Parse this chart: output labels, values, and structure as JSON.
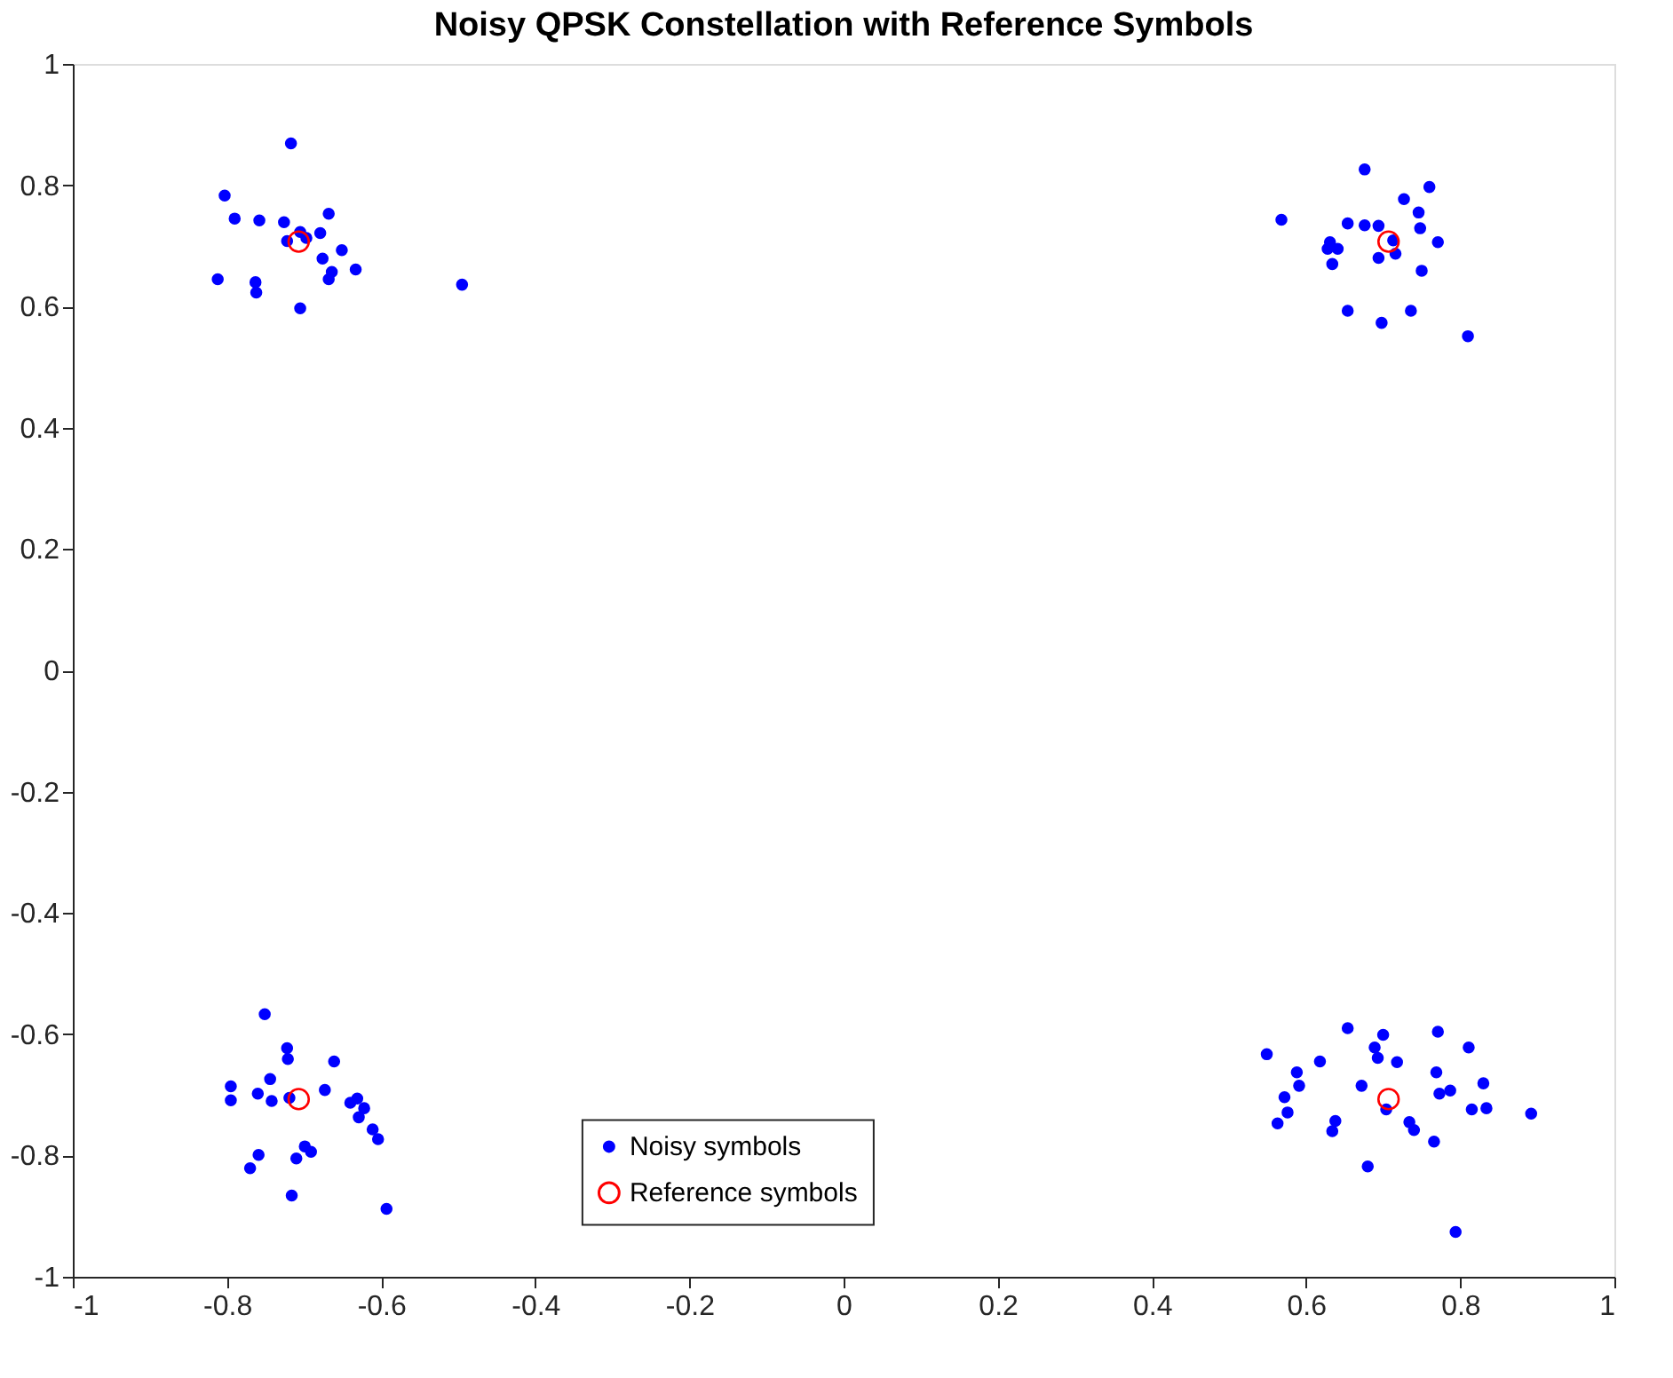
{
  "chart_data": {
    "type": "scatter",
    "title": "Noisy QPSK Constellation with Reference Symbols",
    "series": [
      {
        "name": "Noisy symbols",
        "color": "#0000ff",
        "marker": "circle",
        "x": [
          -0.717,
          -0.803,
          -0.79,
          -0.758,
          -0.726,
          -0.668,
          -0.679,
          -0.722,
          -0.697,
          -0.705,
          -0.651,
          -0.676,
          -0.633,
          -0.664,
          -0.668,
          -0.812,
          -0.763,
          -0.762,
          -0.705,
          -0.495,
          0.676,
          0.76,
          0.727,
          0.746,
          0.568,
          0.654,
          0.676,
          0.694,
          0.748,
          0.713,
          0.771,
          0.631,
          0.628,
          0.641,
          0.694,
          0.716,
          0.634,
          0.75,
          0.654,
          0.698,
          0.736,
          0.81,
          -0.751,
          -0.722,
          -0.721,
          -0.661,
          -0.744,
          -0.795,
          -0.795,
          -0.76,
          -0.742,
          -0.719,
          -0.673,
          -0.64,
          -0.631,
          -0.622,
          -0.629,
          -0.611,
          -0.604,
          -0.699,
          -0.691,
          -0.759,
          -0.77,
          -0.71,
          -0.716,
          -0.593,
          0.549,
          0.654,
          0.7,
          0.771,
          0.811,
          0.689,
          0.693,
          0.718,
          0.618,
          0.588,
          0.591,
          0.572,
          0.576,
          0.563,
          0.769,
          0.672,
          0.773,
          0.787,
          0.83,
          0.815,
          0.834,
          0.892,
          0.638,
          0.634,
          0.704,
          0.734,
          0.74,
          0.766,
          0.68,
          0.794
        ],
        "values": [
          0.869,
          0.783,
          0.745,
          0.742,
          0.739,
          0.753,
          0.721,
          0.708,
          0.713,
          0.723,
          0.693,
          0.679,
          0.661,
          0.657,
          0.645,
          0.645,
          0.64,
          0.623,
          0.597,
          0.636,
          0.826,
          0.797,
          0.777,
          0.755,
          0.743,
          0.737,
          0.734,
          0.733,
          0.729,
          0.709,
          0.706,
          0.706,
          0.695,
          0.695,
          0.68,
          0.687,
          0.67,
          0.659,
          0.593,
          0.573,
          0.593,
          0.551,
          -0.567,
          -0.623,
          -0.641,
          -0.645,
          -0.674,
          -0.686,
          -0.709,
          -0.698,
          -0.71,
          -0.705,
          -0.692,
          -0.713,
          -0.706,
          -0.722,
          -0.737,
          -0.757,
          -0.773,
          -0.785,
          -0.794,
          -0.799,
          -0.821,
          -0.805,
          -0.866,
          -0.888,
          -0.633,
          -0.59,
          -0.601,
          -0.596,
          -0.622,
          -0.622,
          -0.639,
          -0.646,
          -0.645,
          -0.663,
          -0.685,
          -0.704,
          -0.729,
          -0.747,
          -0.663,
          -0.685,
          -0.698,
          -0.693,
          -0.681,
          -0.724,
          -0.722,
          -0.731,
          -0.743,
          -0.76,
          -0.724,
          -0.745,
          -0.758,
          -0.777,
          -0.818,
          -0.926
        ]
      },
      {
        "name": "Reference symbols",
        "color": "#ff0000",
        "marker": "circle",
        "x": [
          -0.707,
          0.707,
          -0.707,
          0.707
        ],
        "values": [
          0.707,
          0.707,
          -0.707,
          -0.707
        ]
      }
    ],
    "xlim": [
      -1,
      1
    ],
    "ylim": [
      -1,
      1
    ],
    "xticks": [
      -1,
      -0.8,
      -0.6,
      -0.4,
      -0.2,
      0,
      0.2,
      0.4,
      0.6,
      0.8,
      1
    ],
    "yticks": [
      -1,
      -0.8,
      -0.6,
      -0.4,
      -0.2,
      0,
      0.2,
      0.4,
      0.6,
      0.8,
      1
    ],
    "grid": false,
    "legend": "bottom"
  }
}
